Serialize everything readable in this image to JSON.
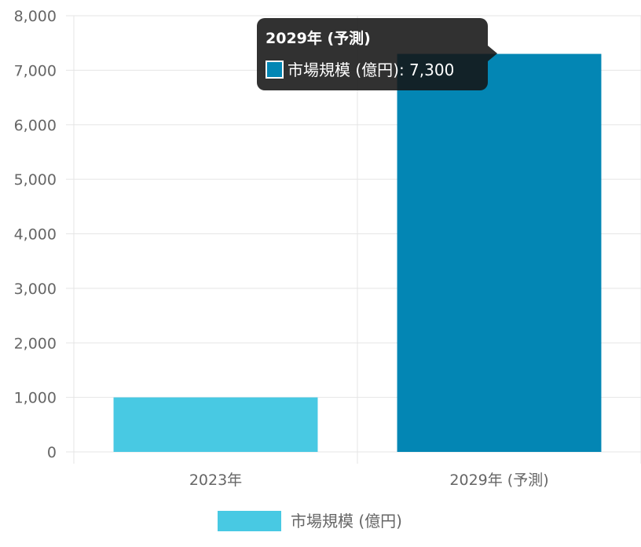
{
  "chart_data": {
    "type": "bar",
    "categories": [
      "2023年",
      "2029年 (予測)"
    ],
    "series": [
      {
        "name": "市場規模 (億円)",
        "values": [
          1000,
          7300
        ]
      }
    ],
    "yticks": [
      "0",
      "1,000",
      "2,000",
      "3,000",
      "4,000",
      "5,000",
      "6,000",
      "7,000",
      "8,000"
    ],
    "ylim": [
      0,
      8000
    ],
    "grid": true,
    "legend": "bottom",
    "colors": {
      "bar": "#48c9e3",
      "bar_active": "#0386b4",
      "gridline": "#e5e5e5",
      "tooltip_bg": "#151515"
    }
  },
  "tooltip": {
    "title": "2029年 (予測)",
    "body": "市場規模 (億円): 7,300",
    "active_index": 1
  }
}
